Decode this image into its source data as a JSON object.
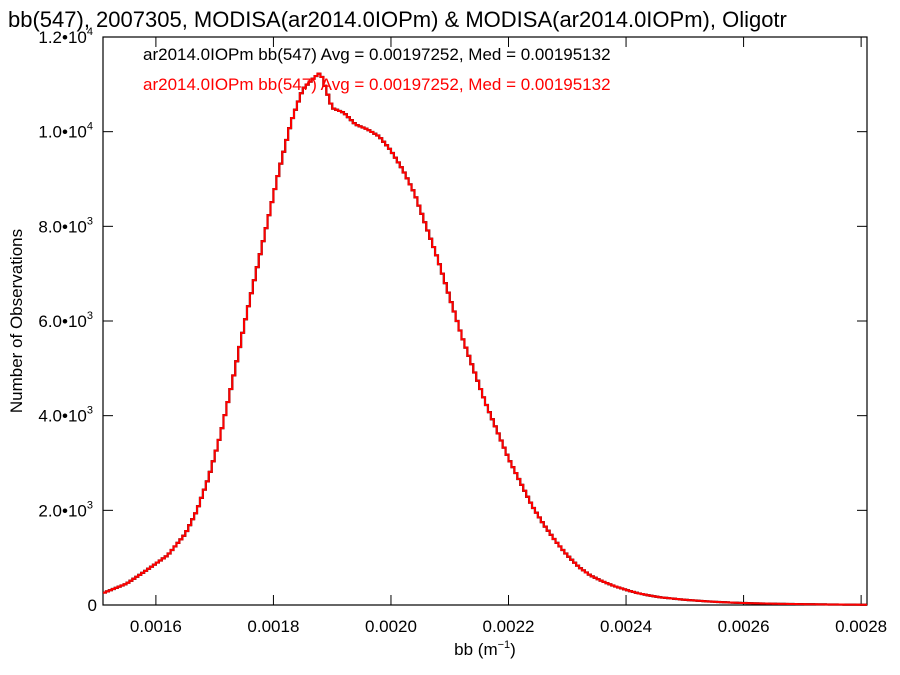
{
  "chart_data": {
    "type": "line",
    "title": "bb(547), 2007305, MODISA(ar2014.0IOPm) & MODISA(ar2014.0IOPm), Oligotr",
    "xlabel": "bb (m",
    "xlabel_exp": "−1",
    "xlabel_close": ")",
    "ylabel": "Number of Observations",
    "xlim": [
      0.00151,
      0.00281
    ],
    "ylim": [
      0,
      12000
    ],
    "x_ticks": [
      {
        "value": 0.0016,
        "label": "0.0016"
      },
      {
        "value": 0.0018,
        "label": "0.0018"
      },
      {
        "value": 0.002,
        "label": "0.0020"
      },
      {
        "value": 0.0022,
        "label": "0.0022"
      },
      {
        "value": 0.0024,
        "label": "0.0024"
      },
      {
        "value": 0.0026,
        "label": "0.0026"
      },
      {
        "value": 0.0028,
        "label": "0.0028"
      }
    ],
    "y_ticks": [
      {
        "value": 0,
        "label": "0",
        "exp": ""
      },
      {
        "value": 2000,
        "label": "2.0•10",
        "exp": "3"
      },
      {
        "value": 4000,
        "label": "4.0•10",
        "exp": "3"
      },
      {
        "value": 6000,
        "label": "6.0•10",
        "exp": "3"
      },
      {
        "value": 8000,
        "label": "8.0•10",
        "exp": "3"
      },
      {
        "value": 10000,
        "label": "1.0•10",
        "exp": "4"
      },
      {
        "value": 12000,
        "label": "1.2•10",
        "exp": "4"
      }
    ],
    "grid": false,
    "legend_position": "top",
    "series": [
      {
        "name": "ar2014.0IOPm bb(547) Avg = 0.00197252, Med = 0.00195132",
        "color": "#000000",
        "x": [
          0.00151,
          0.00155,
          0.00158,
          0.00162,
          0.00165,
          0.00167,
          0.00169,
          0.00171,
          0.00173,
          0.00175,
          0.00177,
          0.00179,
          0.00181,
          0.00183,
          0.00185,
          0.00187,
          0.00188,
          0.0019,
          0.00192,
          0.00194,
          0.00196,
          0.00198,
          0.002,
          0.00202,
          0.00204,
          0.00206,
          0.00208,
          0.0021,
          0.00212,
          0.00214,
          0.00216,
          0.00218,
          0.0022,
          0.00222,
          0.00224,
          0.00226,
          0.00228,
          0.0023,
          0.00232,
          0.00234,
          0.00236,
          0.00238,
          0.0024,
          0.00242,
          0.00244,
          0.00246,
          0.0025,
          0.00254,
          0.00258,
          0.00262,
          0.00266,
          0.0027,
          0.00274,
          0.00278,
          0.00281
        ],
        "y": [
          250,
          450,
          700,
          1050,
          1500,
          2000,
          2700,
          3600,
          4700,
          5900,
          7000,
          8100,
          9200,
          10200,
          10900,
          11150,
          11250,
          10500,
          10400,
          10150,
          10050,
          9900,
          9600,
          9200,
          8700,
          8000,
          7300,
          6500,
          5700,
          5000,
          4300,
          3700,
          3100,
          2600,
          2100,
          1700,
          1350,
          1050,
          800,
          620,
          500,
          400,
          320,
          250,
          200,
          160,
          110,
          75,
          50,
          35,
          25,
          18,
          12,
          8,
          5
        ]
      },
      {
        "name": "ar2014.0IOPm bb(547) Avg = 0.00197252, Med = 0.00195132",
        "color": "#ff0000",
        "x": [
          0.00151,
          0.00155,
          0.00158,
          0.00162,
          0.00165,
          0.00167,
          0.00169,
          0.00171,
          0.00173,
          0.00175,
          0.00177,
          0.00179,
          0.00181,
          0.00183,
          0.00185,
          0.00187,
          0.00188,
          0.0019,
          0.00192,
          0.00194,
          0.00196,
          0.00198,
          0.002,
          0.00202,
          0.00204,
          0.00206,
          0.00208,
          0.0021,
          0.00212,
          0.00214,
          0.00216,
          0.00218,
          0.0022,
          0.00222,
          0.00224,
          0.00226,
          0.00228,
          0.0023,
          0.00232,
          0.00234,
          0.00236,
          0.00238,
          0.0024,
          0.00242,
          0.00244,
          0.00246,
          0.0025,
          0.00254,
          0.00258,
          0.00262,
          0.00266,
          0.0027,
          0.00274,
          0.00278,
          0.00281
        ],
        "y": [
          250,
          450,
          700,
          1050,
          1500,
          2000,
          2700,
          3600,
          4700,
          5900,
          7000,
          8100,
          9200,
          10200,
          10900,
          11150,
          11250,
          10500,
          10400,
          10150,
          10050,
          9900,
          9600,
          9200,
          8700,
          8000,
          7300,
          6500,
          5700,
          5000,
          4300,
          3700,
          3100,
          2600,
          2100,
          1700,
          1350,
          1050,
          800,
          620,
          500,
          400,
          320,
          250,
          200,
          160,
          110,
          75,
          50,
          35,
          25,
          18,
          12,
          8,
          5
        ]
      }
    ]
  }
}
